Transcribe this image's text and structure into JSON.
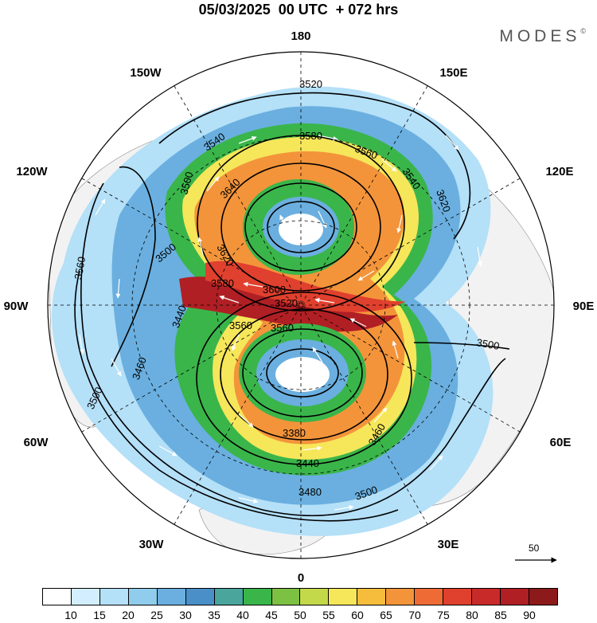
{
  "title": "05/03/2025  00 UTC  + 072 hrs",
  "brand": "MODES",
  "brand_mark": "©",
  "longitude_labels": {
    "deg180": "180",
    "deg150e": "150E",
    "deg120e": "120E",
    "deg90e": "90E",
    "deg60e": "60E",
    "deg30e": "30E",
    "deg0": "0",
    "deg30w": "30W",
    "deg60w": "60W",
    "deg90w": "90W",
    "deg120w": "120W",
    "deg150w": "150W"
  },
  "contour_labels": [
    "3520",
    "3540",
    "3580",
    "3560",
    "3540",
    "3620",
    "3500",
    "3640",
    "3560",
    "3500",
    "3620",
    "3580",
    "3600",
    "3520",
    "3440",
    "3500",
    "3560",
    "3460",
    "3560",
    "3500",
    "3380",
    "3440",
    "3460",
    "3480",
    "3500"
  ],
  "reference_vector": {
    "label": "50"
  },
  "colorbar": {
    "ticks": [
      "10",
      "15",
      "20",
      "25",
      "30",
      "35",
      "40",
      "45",
      "50",
      "55",
      "60",
      "65",
      "70",
      "75",
      "80",
      "85",
      "90"
    ],
    "colors": [
      "#ffffff",
      "#d3efff",
      "#b4e0f8",
      "#90cceb",
      "#6aafdf",
      "#4a8fc8",
      "#4aa59c",
      "#3ab54a",
      "#7dc142",
      "#c4d94a",
      "#f6e65a",
      "#f6bd3c",
      "#f3943a",
      "#ee6b35",
      "#e0402e",
      "#c82a2a",
      "#b01f24",
      "#8c1a1a"
    ]
  },
  "colors": {
    "land": "#f2f2f2",
    "ocean": "#ffffff"
  }
}
